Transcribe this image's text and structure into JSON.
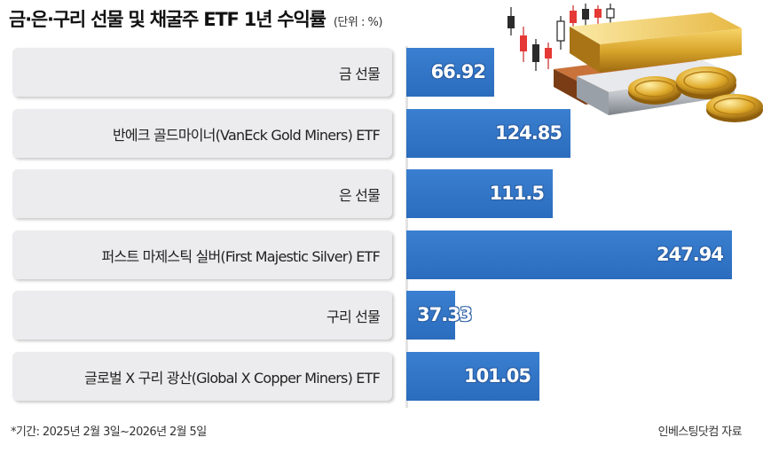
{
  "title": "금·은·구리 선물 및 채굴주 ETF 1년 수익률",
  "unit": "(단위 : %)",
  "footnote": "*기간: 2025년 2월 3일~2026년 2월 5일",
  "source": "인베스팅닷컴 자료",
  "colors": {
    "bar": "#2f73c4",
    "label_bg": "#ececee"
  },
  "chart_data": {
    "type": "bar",
    "orientation": "horizontal",
    "categories": [
      "금 선물",
      "반에크 골드마이너(VanEck Gold Miners) ETF",
      "은 선물",
      "퍼스트 마제스틱 실버(First Majestic Silver)  ETF",
      "구리 선물",
      "글로벌 X 구리 광산(Global X Copper Miners) ETF"
    ],
    "values": [
      66.92,
      124.85,
      111.5,
      247.94,
      37.33,
      101.05
    ],
    "value_labels": [
      "66.92",
      "124.85",
      "111.5",
      "247.94",
      "37.33",
      "101.05"
    ],
    "xlim": [
      0,
      250
    ],
    "grid": false,
    "legend": "none"
  }
}
